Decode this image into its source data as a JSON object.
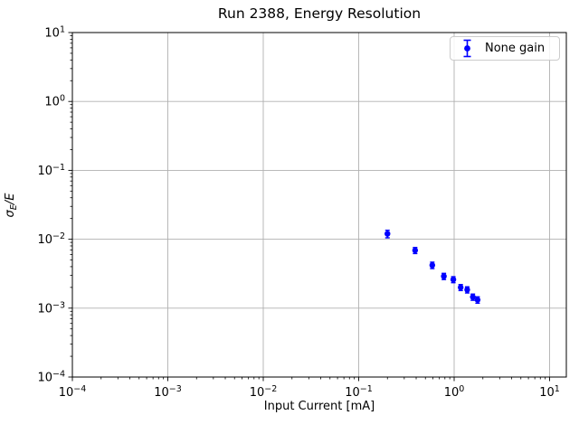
{
  "chart_data": {
    "type": "scatter",
    "title": "Run 2388, Energy Resolution",
    "xlabel": "Input Current [mA]",
    "ylabel": "σ_E/E",
    "xscale": "log",
    "yscale": "log",
    "xlim": [
      0.0001,
      15
    ],
    "ylim": [
      0.0001,
      10
    ],
    "grid": true,
    "legend_position": "upper right",
    "x_tick_exponents": [
      -4,
      -3,
      -2,
      -1,
      0,
      1
    ],
    "y_tick_exponents": [
      1,
      0,
      -1,
      -2,
      -3,
      -4
    ],
    "series": [
      {
        "name": "None gain",
        "color": "#0000ff",
        "marker": "circle",
        "x": [
          0.2,
          0.39,
          0.59,
          0.78,
          0.98,
          1.17,
          1.37,
          1.57,
          1.76
        ],
        "y": [
          0.012,
          0.0069,
          0.0042,
          0.0029,
          0.0026,
          0.002,
          0.00185,
          0.00145,
          0.00132
        ],
        "yerr": [
          0.0015,
          0.0007,
          0.00045,
          0.0003,
          0.00026,
          0.0002,
          0.00019,
          0.00015,
          0.00014
        ]
      }
    ],
    "colors": {
      "grid": "#b0b0b0",
      "spine": "#000000",
      "text": "#000000",
      "background": "#ffffff"
    }
  }
}
